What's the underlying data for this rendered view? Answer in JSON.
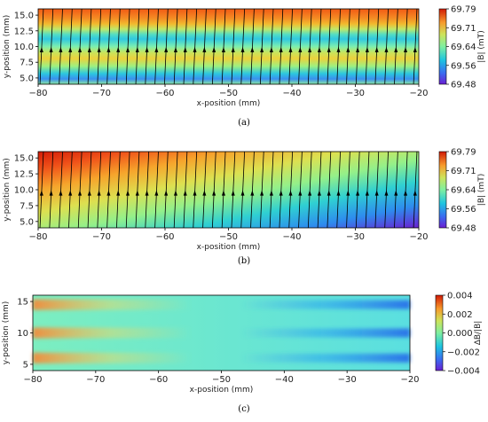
{
  "chart_data": [
    {
      "type": "heatmap",
      "panel": "a",
      "caption": "(a)",
      "xlabel": "x-position (mm)",
      "ylabel": "y-position (mm)",
      "xlim": [
        -80,
        -20
      ],
      "ylim": [
        4.0,
        16.0
      ],
      "x_ticks": [
        "−80",
        "−70",
        "−60",
        "−50",
        "−40",
        "−30",
        "−20"
      ],
      "y_ticks": [
        "5.0",
        "7.5",
        "10.0",
        "12.5",
        "15.0"
      ],
      "colorbar": {
        "label": "|B| (mT)",
        "min": 69.48,
        "max": 69.79,
        "ticks": [
          "69.79",
          "69.71",
          "69.64",
          "69.56",
          "69.48"
        ]
      },
      "field_lines": {
        "present": true,
        "count": 40,
        "arrow_y": 9.5,
        "direction": "up"
      },
      "field_pattern": "horizontal stripes: high |B| near y≈16 and y≈13, low |B| near y≈6 and y≈11.5"
    },
    {
      "type": "heatmap",
      "panel": "b",
      "caption": "(b)",
      "xlabel": "x-position (mm)",
      "ylabel": "y-position (mm)",
      "xlim": [
        -80,
        -20
      ],
      "ylim": [
        4.0,
        16.0
      ],
      "x_ticks": [
        "−80",
        "−70",
        "−60",
        "−50",
        "−40",
        "−30",
        "−20"
      ],
      "y_ticks": [
        "5.0",
        "7.5",
        "10.0",
        "12.5",
        "15.0"
      ],
      "colorbar": {
        "label": "|B| (mT)",
        "min": 69.48,
        "max": 69.79,
        "ticks": [
          "69.79",
          "69.71",
          "69.64",
          "69.56",
          "69.48"
        ]
      },
      "field_lines": {
        "present": true,
        "count": 40,
        "arrow_y": 9.5,
        "direction": "up"
      },
      "field_pattern": "diagonal gradient: maximum at top-left (x=-80, y=16), minimum at bottom-right (x=-20, y=4)"
    },
    {
      "type": "heatmap",
      "panel": "c",
      "caption": "(c)",
      "xlabel": "x-position (mm)",
      "ylabel": "y-position (mm)",
      "xlim": [
        -80,
        -20
      ],
      "ylim": [
        4.0,
        16.0
      ],
      "x_ticks": [
        "−80",
        "−70",
        "−60",
        "−50",
        "−40",
        "−30",
        "−20"
      ],
      "y_ticks": [
        "5",
        "10",
        "15"
      ],
      "colorbar": {
        "label": "ΔB/|B|",
        "min": -0.004,
        "max": 0.004,
        "ticks": [
          "0.004",
          "0.002",
          "0.000",
          "−0.002",
          "−0.004"
        ]
      },
      "field_lines": {
        "present": false
      },
      "field_pattern": "positive bands at y≈6,10,14.5 on left side (x<-65); negative bands at y≈6,10,14.5 on right side (x>-40)"
    }
  ]
}
